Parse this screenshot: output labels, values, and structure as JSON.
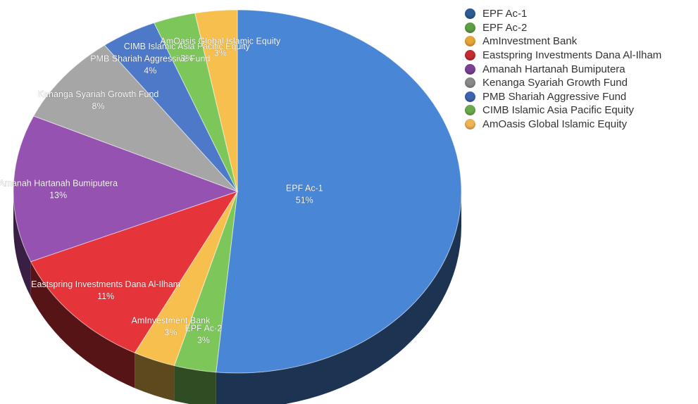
{
  "chart_data": {
    "type": "pie",
    "legend_position": "top-right",
    "slices": [
      {
        "name": "EPF Ac-1",
        "value": 51,
        "label": "51%",
        "color": "#4a86d6",
        "legend_color": "#2d5b94"
      },
      {
        "name": "EPF Ac-2",
        "value": 3,
        "label": "3%",
        "color": "#7dc75a",
        "legend_color": "#5e9e44"
      },
      {
        "name": "AmInvestment Bank",
        "value": 3,
        "label": "3%",
        "color": "#f7c04e",
        "legend_color": "#e7a53a"
      },
      {
        "name": "Eastspring Investments Dana Al-Ilham",
        "value": 11,
        "label": "11%",
        "color": "#e5343a",
        "legend_color": "#c62b31"
      },
      {
        "name": "Amanah Hartanah Bumiputera",
        "value": 13,
        "label": "13%",
        "color": "#9552b0",
        "legend_color": "#7b3f94"
      },
      {
        "name": "Kenanga Syariah Growth Fund",
        "value": 8,
        "label": "8%",
        "color": "#a6a6a6",
        "legend_color": "#8a8a8a"
      },
      {
        "name": "PMB Shariah Aggressive Fund",
        "value": 4,
        "label": "4%",
        "color": "#4d79c8",
        "legend_color": "#3f63ad"
      },
      {
        "name": "CIMB Islamic Asia Pacific Equity",
        "value": 3,
        "label": "3%",
        "color": "#7dc75a",
        "legend_color": "#6aaa4b"
      },
      {
        "name": "AmOasis Global Islamic Equity",
        "value": 3,
        "label": "3%",
        "color": "#f7c04e",
        "legend_color": "#f0b357"
      }
    ]
  }
}
